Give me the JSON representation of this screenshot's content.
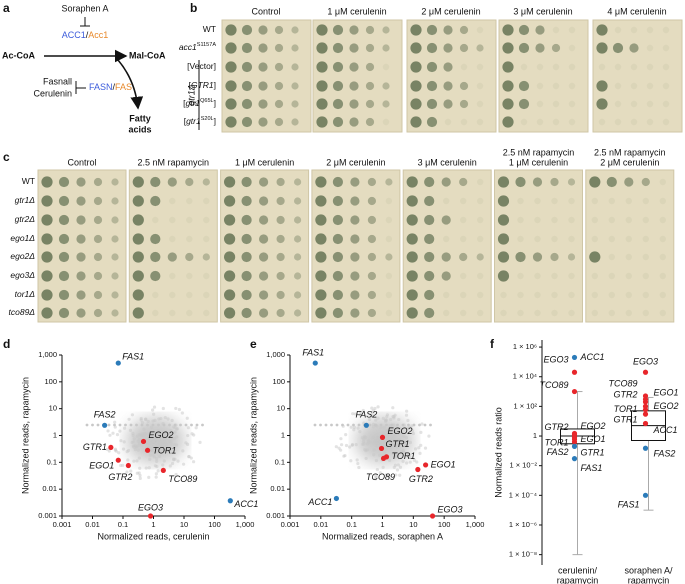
{
  "panel_labels": [
    "a",
    "b",
    "c",
    "d",
    "e",
    "f"
  ],
  "pathway": {
    "inhibitor1": "Soraphen A",
    "enzyme1_human": "ACC1",
    "sep": "/",
    "enzyme1_yeast": "Acc1",
    "substrate": "Ac-CoA",
    "product": "Mal-CoA",
    "inhibitor2a": "Fasnall",
    "inhibitor2b": "Cerulenin",
    "enzyme2_human": "FASN",
    "enzyme2_yeast": "FAS",
    "end_product": [
      "Fatty",
      "acids"
    ]
  },
  "spot_assay_b": {
    "conditions": [
      "Control",
      "1 μM cerulenin",
      "2 μM cerulenin",
      "3 μM cerulenin",
      "4 μM cerulenin"
    ],
    "rows": [
      [
        {
          "t": "WT"
        }
      ],
      [
        {
          "t": "acc1",
          "i": true
        },
        {
          "t": "S1157A",
          "sup": true
        }
      ],
      [
        {
          "t": "[Vector]"
        }
      ],
      [
        {
          "t": "["
        },
        {
          "t": "GTR1",
          "i": true
        },
        {
          "t": "]"
        }
      ],
      [
        {
          "t": "["
        },
        {
          "t": "gtr1",
          "i": true
        },
        {
          "t": "Q65L",
          "sup": true
        },
        {
          "t": "]"
        }
      ],
      [
        {
          "t": "["
        },
        {
          "t": "gtr1",
          "i": true
        },
        {
          "t": "S20L",
          "sup": true
        },
        {
          "t": "]"
        }
      ]
    ],
    "group_label": "gtr1Δ"
  },
  "spot_assay_c": {
    "conditions": [
      [
        "Control"
      ],
      [
        "2.5 nM rapamycin"
      ],
      [
        "1 μM cerulenin"
      ],
      [
        "2 μM cerulenin"
      ],
      [
        "3 μM cerulenin"
      ],
      [
        "2.5 nM rapamycin",
        "1 μM cerulenin"
      ],
      [
        "2.5 nM rapamycin",
        "2 μM cerulenin"
      ]
    ],
    "rows": [
      [
        {
          "t": "WT"
        }
      ],
      [
        {
          "t": "gtr1Δ",
          "i": true
        }
      ],
      [
        {
          "t": "gtr2Δ",
          "i": true
        }
      ],
      [
        {
          "t": "ego1Δ",
          "i": true
        }
      ],
      [
        {
          "t": "ego2Δ",
          "i": true
        }
      ],
      [
        {
          "t": "ego3Δ",
          "i": true
        }
      ],
      [
        {
          "t": "tor1Δ",
          "i": true
        }
      ],
      [
        {
          "t": "tco89Δ",
          "i": true
        }
      ]
    ]
  },
  "chart_data": [
    {
      "type": "scatter",
      "xlabel": "Normalized reads, cerulenin",
      "ylabel": "Normalized reads, rapamycin",
      "log_x": true,
      "log_y": true,
      "xlim": [
        0.001,
        1000
      ],
      "ylim": [
        0.001,
        1000
      ],
      "xticks": [
        0.001,
        0.01,
        0.1,
        1,
        10,
        100,
        {
          "value": 1000,
          "label": "1,000"
        }
      ],
      "yticks": [
        0.001,
        0.01,
        0.1,
        1,
        10,
        100,
        {
          "value": 1000,
          "label": "1,000"
        }
      ],
      "points": [
        {
          "label": "FAS1",
          "x": 0.07,
          "y": 500,
          "color": "#2b7bb9"
        },
        {
          "label": "FAS2",
          "x": 0.025,
          "y": 2.4,
          "color": "#2b7bb9"
        },
        {
          "label": "EGO2",
          "x": 0.47,
          "y": 0.6,
          "color": "#e8262b"
        },
        {
          "label": "GTR1",
          "x": 0.04,
          "y": 0.36,
          "color": "#e8262b"
        },
        {
          "label": "TOR1",
          "x": 0.64,
          "y": 0.28,
          "color": "#e8262b"
        },
        {
          "label": "EGO1",
          "x": 0.07,
          "y": 0.12,
          "color": "#e8262b"
        },
        {
          "label": "GTR2",
          "x": 0.15,
          "y": 0.076,
          "color": "#e8262b"
        },
        {
          "label": "TCO89",
          "x": 2.1,
          "y": 0.05,
          "color": "#e8262b"
        },
        {
          "label": "EGO3",
          "x": 0.8,
          "y": 0.001,
          "color": "#e8262b"
        },
        {
          "label": "ACC1",
          "x": 330,
          "y": 0.0037,
          "color": "#2b7bb9"
        }
      ]
    },
    {
      "type": "scatter",
      "xlabel": "Normalized reads, soraphen A",
      "ylabel": "Normalized reads, rapamycin",
      "log_x": true,
      "log_y": true,
      "xlim": [
        0.001,
        1000
      ],
      "ylim": [
        0.001,
        1000
      ],
      "xticks": [
        0.001,
        0.01,
        0.1,
        1,
        10,
        100,
        {
          "value": 1000,
          "label": "1,000"
        }
      ],
      "yticks": [
        0.001,
        0.01,
        0.1,
        1,
        10,
        100,
        {
          "value": 1000,
          "label": "1,000"
        }
      ],
      "points": [
        {
          "label": "FAS1",
          "x": 0.0066,
          "y": 500,
          "color": "#2b7bb9"
        },
        {
          "label": "FAS2",
          "x": 0.3,
          "y": 2.4,
          "color": "#2b7bb9"
        },
        {
          "label": "EGO2",
          "x": 1,
          "y": 0.85,
          "color": "#e8262b"
        },
        {
          "label": "GTR1",
          "x": 0.93,
          "y": 0.33,
          "color": "#e8262b"
        },
        {
          "label": "TOR1",
          "x": 1.35,
          "y": 0.16,
          "color": "#e8262b"
        },
        {
          "label": "TCO89",
          "x": 1.08,
          "y": 0.14,
          "color": "#e8262b"
        },
        {
          "label": "EGO1",
          "x": 25,
          "y": 0.08,
          "color": "#e8262b"
        },
        {
          "label": "GTR2",
          "x": 14,
          "y": 0.054,
          "color": "#e8262b"
        },
        {
          "label": "EGO3",
          "x": 42,
          "y": 0.001,
          "color": "#e8262b"
        },
        {
          "label": "ACC1",
          "x": 0.032,
          "y": 0.0045,
          "color": "#2b7bb9"
        }
      ]
    },
    {
      "type": "box",
      "ylabel": "Normalized reads ratio",
      "log_y": true,
      "ylim": [
        2e-09,
        3000000.0
      ],
      "yticks": [
        {
          "value": 1000000,
          "label": "1 × 10⁶"
        },
        {
          "value": 10000,
          "label": "1 × 10⁴"
        },
        {
          "value": 100,
          "label": "1 × 10²"
        },
        1,
        {
          "value": 0.01,
          "label": "1 × 10⁻²"
        },
        {
          "value": 0.0001,
          "label": "1 × 10⁻⁴"
        },
        {
          "value": 1e-06,
          "label": "1 × 10⁻⁶"
        },
        {
          "value": 1e-08,
          "label": "1 × 10⁻⁸"
        }
      ],
      "categories": [
        [
          "cerulenin/",
          "rapamycin"
        ],
        [
          "soraphen A/",
          "rapamycin"
        ]
      ],
      "boxes": [
        {
          "whisker_low": 1e-08,
          "q1": 0.3,
          "median": 1,
          "q3": 3,
          "whisker_high": 1000
        },
        {
          "whisker_low": 1e-05,
          "q1": 0.5,
          "median": 5,
          "q3": 50,
          "whisker_high": 400
        }
      ],
      "points": [
        [
          {
            "label": "ACC1",
            "value": 200000,
            "color": "#2b7bb9"
          },
          {
            "label": "EGO3",
            "value": 20000,
            "color": "#e8262b"
          },
          {
            "label": "TCO89",
            "value": 1000,
            "color": "#e8262b"
          },
          {
            "label": "GTR2",
            "value": 1.5,
            "color": "#e8262b"
          },
          {
            "label": "EGO2",
            "value": 1.2,
            "color": "#e8262b"
          },
          {
            "label": "EGO1",
            "value": 0.8,
            "color": "#e8262b"
          },
          {
            "label": "TOR1",
            "value": 0.6,
            "color": "#e8262b"
          },
          {
            "label": "GTR1",
            "value": 0.4,
            "color": "#e8262b"
          },
          {
            "label": "FAS2",
            "value": 0.2,
            "color": "#2b7bb9"
          },
          {
            "label": "FAS1",
            "value": 0.03,
            "color": "#2b7bb9"
          }
        ],
        [
          {
            "label": "EGO3",
            "value": 20000,
            "color": "#e8262b"
          },
          {
            "label": "TCO89",
            "value": 500,
            "color": "#e8262b"
          },
          {
            "label": "EGO1",
            "value": 300,
            "color": "#e8262b"
          },
          {
            "label": "GTR2",
            "value": 200,
            "color": "#e8262b"
          },
          {
            "label": "EGO2",
            "value": 100,
            "color": "#e8262b"
          },
          {
            "label": "TOR1",
            "value": 60,
            "color": "#e8262b"
          },
          {
            "label": "GTR1",
            "value": 30,
            "color": "#e8262b"
          },
          {
            "label": "ACC1",
            "value": 7,
            "color": "#e8262b"
          },
          {
            "label": "FAS2",
            "value": 0.15,
            "color": "#2b7bb9"
          },
          {
            "label": "FAS1",
            "value": 0.0001,
            "color": "#2b7bb9"
          }
        ]
      ]
    }
  ]
}
